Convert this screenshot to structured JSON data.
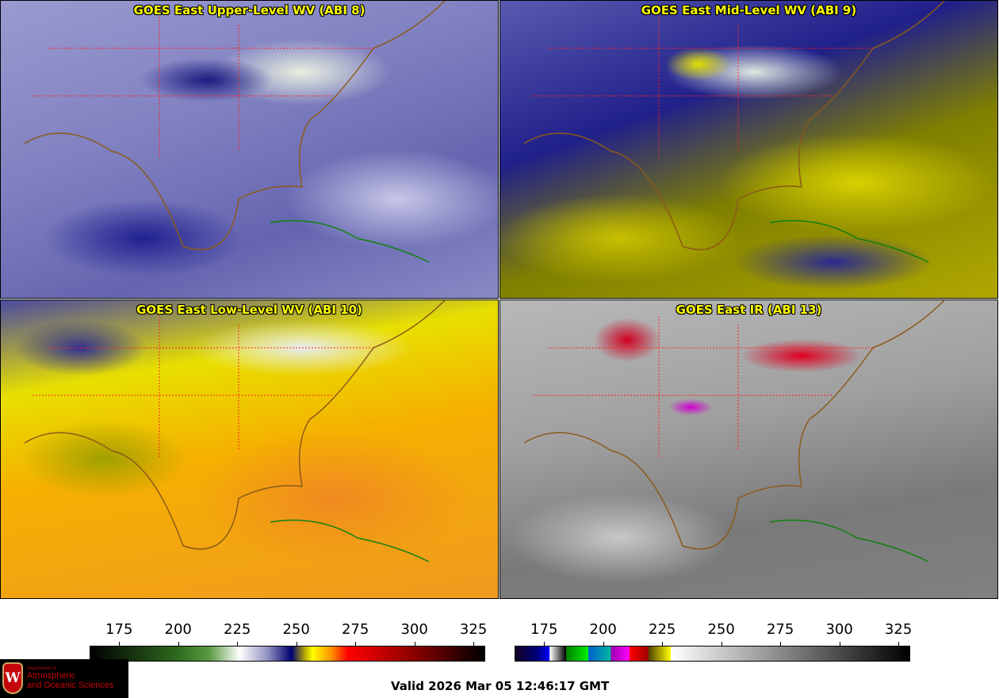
{
  "panels": [
    {
      "title": "GOES East Upper-Level WV (ABI 8)"
    },
    {
      "title": "GOES East Mid-Level WV (ABI 9)"
    },
    {
      "title": "GOES East Low-Level WV (ABI 10)"
    },
    {
      "title": "GOES East IR (ABI 13)"
    }
  ],
  "colorbars": [
    {
      "name": "wv",
      "range": [
        162.5,
        330
      ],
      "ticks": [
        "175",
        "200",
        "225",
        "250",
        "275",
        "300",
        "325"
      ],
      "stops": [
        [
          162.5,
          "#000000"
        ],
        [
          200,
          "#2f6b1e"
        ],
        [
          213,
          "#5a9a40"
        ],
        [
          226,
          "#ffffff"
        ],
        [
          238,
          "#9090c0"
        ],
        [
          248,
          "#000070"
        ],
        [
          254,
          "#c0b000"
        ],
        [
          257,
          "#ffff00"
        ],
        [
          265,
          "#ff9000"
        ],
        [
          272,
          "#ff0000"
        ],
        [
          300,
          "#8b0000"
        ],
        [
          330,
          "#000000"
        ]
      ]
    },
    {
      "name": "ir",
      "range": [
        162.5,
        330
      ],
      "ticks": [
        "175",
        "200",
        "225",
        "250",
        "275",
        "300",
        "325"
      ],
      "stops": [
        [
          162.5,
          "#100020"
        ],
        [
          172,
          "#000080"
        ],
        [
          177,
          "#0000ff"
        ],
        [
          177.1,
          "#ffffff"
        ],
        [
          184,
          "#000000"
        ],
        [
          184.1,
          "#008000"
        ],
        [
          193.5,
          "#00f000"
        ],
        [
          193.6,
          "#0060d0"
        ],
        [
          203,
          "#00b8a0"
        ],
        [
          203.1,
          "#a000b0"
        ],
        [
          211,
          "#ff00ff"
        ],
        [
          211.1,
          "#ff0000"
        ],
        [
          219,
          "#a00000"
        ],
        [
          219.1,
          "#504000"
        ],
        [
          228.5,
          "#ffff00"
        ],
        [
          228.6,
          "#ffffff"
        ],
        [
          330,
          "#000000"
        ]
      ]
    }
  ],
  "logo": {
    "line1": "Department of",
    "line2": "Atmospheric",
    "line3": "and Oceanic Sciences",
    "mark": "W"
  },
  "valid_text": "Valid 2026 Mar 05 12:46:17 GMT"
}
